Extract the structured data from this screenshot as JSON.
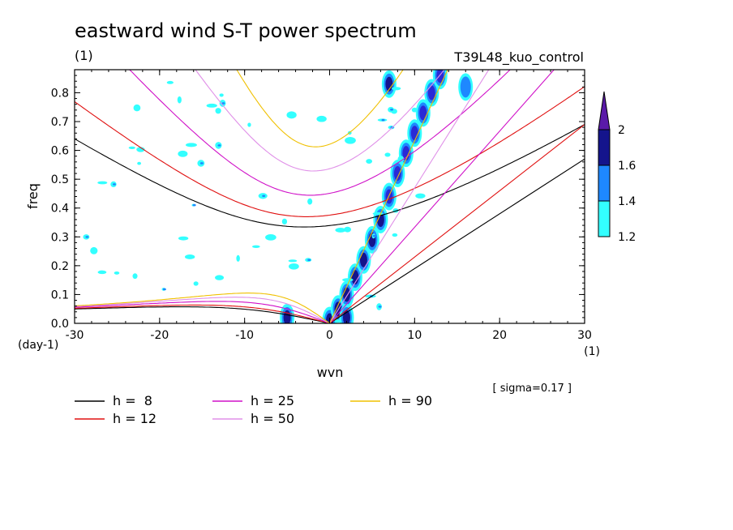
{
  "chart_data": {
    "type": "heatmap",
    "title": "eastward wind S-T power spectrum",
    "subtitle_left": "(1)",
    "subtitle_right": "T39L48_kuo_control",
    "xlabel": "wvn",
    "ylabel": "freq",
    "x_unit": "(1)",
    "y_unit": "(day-1)",
    "sigma_note": "[ sigma=0.17 ]",
    "xlim": [
      -30,
      30
    ],
    "ylim": [
      0,
      0.88
    ],
    "x_ticks": [
      -30,
      -20,
      -10,
      0,
      10,
      20,
      30
    ],
    "x_tick_labels": [
      "-30",
      "-20",
      "-10",
      "0",
      "10",
      "20",
      "30"
    ],
    "y_ticks": [
      0,
      0.1,
      0.2,
      0.3,
      0.4,
      0.5,
      0.6,
      0.7,
      0.8
    ],
    "y_tick_labels": [
      "0.0",
      "0.1",
      "0.2",
      "0.3",
      "0.4",
      "0.5",
      "0.6",
      "0.7",
      "0.8"
    ],
    "colorbar": {
      "levels": [
        1.2,
        1.4,
        1.6,
        2
      ],
      "labels": [
        "1.2",
        "1.4",
        "1.6",
        "2"
      ],
      "colors": [
        "#33ffff",
        "#1e88ff",
        "#2a2ad6",
        "#14148c",
        "#5a1aa8"
      ]
    },
    "dispersion_curves": [
      {
        "name": "h =  8",
        "h": 8,
        "color": "#000000"
      },
      {
        "name": "h = 12",
        "h": 12,
        "color": "#e01010"
      },
      {
        "name": "h = 25",
        "h": 25,
        "color": "#d010c8"
      },
      {
        "name": "h = 50",
        "h": 50,
        "color": "#e090e8"
      },
      {
        "name": "h = 90",
        "h": 90,
        "color": "#f0c000"
      }
    ],
    "kelvin_lines": [
      {
        "h": 8,
        "freq_at_30": 0.57,
        "color": "#000000"
      },
      {
        "h": 12,
        "freq_at_30": 0.69,
        "color": "#e01010"
      },
      {
        "h": 25,
        "freq_at_30": 1.0,
        "color": "#d010c8"
      },
      {
        "h": 50,
        "freq_at_30": 1.41,
        "color": "#e090e8"
      },
      {
        "h": 90,
        "freq_at_30": 1.9,
        "color": "#f0c000"
      }
    ],
    "spectral_peaks": [
      {
        "wvn": 0,
        "freq": 0.01,
        "level": 2
      },
      {
        "wvn": 1,
        "freq": 0.05,
        "level": 2
      },
      {
        "wvn": 2,
        "freq": 0.1,
        "level": 2
      },
      {
        "wvn": 3,
        "freq": 0.16,
        "level": 2
      },
      {
        "wvn": 4,
        "freq": 0.22,
        "level": 2
      },
      {
        "wvn": 5,
        "freq": 0.29,
        "level": 2
      },
      {
        "wvn": 6,
        "freq": 0.36,
        "level": 2
      },
      {
        "wvn": 7,
        "freq": 0.44,
        "level": 1.6
      },
      {
        "wvn": 8,
        "freq": 0.52,
        "level": 1.6
      },
      {
        "wvn": 9,
        "freq": 0.59,
        "level": 1.6
      },
      {
        "wvn": 10,
        "freq": 0.66,
        "level": 1.6
      },
      {
        "wvn": 11,
        "freq": 0.73,
        "level": 1.6
      },
      {
        "wvn": 12,
        "freq": 0.8,
        "level": 1.6
      },
      {
        "wvn": 13,
        "freq": 0.86,
        "level": 1.6
      },
      {
        "wvn": 7,
        "freq": 0.83,
        "level": 2
      },
      {
        "wvn": 16,
        "freq": 0.82,
        "level": 1.4
      },
      {
        "wvn": -5,
        "freq": 0.02,
        "level": 2
      },
      {
        "wvn": 2,
        "freq": 0.02,
        "level": 2
      }
    ]
  }
}
